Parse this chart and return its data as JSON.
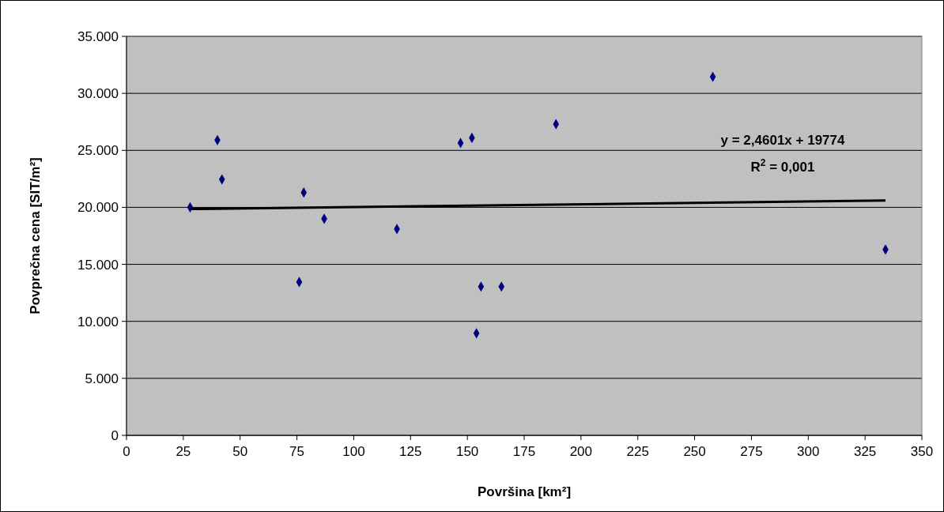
{
  "chart_data": {
    "type": "scatter",
    "xlabel": "Površina [km²]",
    "ylabel": "Povprečna cena [SIT/m²]",
    "xlim": [
      0,
      350
    ],
    "xticks": [
      0,
      25,
      50,
      75,
      100,
      125,
      150,
      175,
      200,
      225,
      250,
      275,
      300,
      325,
      350
    ],
    "ylim": [
      0,
      35000
    ],
    "yticks": [
      0,
      {
        "value": 5000,
        "label": "5.000"
      },
      {
        "value": 10000,
        "label": "10.000"
      },
      {
        "value": 15000,
        "label": "15.000"
      },
      {
        "value": 20000,
        "label": "20.000"
      },
      {
        "value": 25000,
        "label": "25.000"
      },
      {
        "value": 30000,
        "label": "30.000"
      },
      {
        "value": 35000,
        "label": "35.000"
      }
    ],
    "grid": "y",
    "series": [
      {
        "marker": "diamond",
        "color": "#000080",
        "x": [
          28,
          40,
          42,
          76,
          78,
          87,
          119,
          147,
          152,
          154,
          156,
          165,
          189,
          258,
          334
        ],
        "values": [
          20000,
          25900,
          22450,
          13450,
          21300,
          19000,
          18100,
          25650,
          26100,
          8950,
          13050,
          13050,
          27300,
          31450,
          16300
        ]
      },
      {
        "type": "line",
        "marker": "none",
        "color": "#000000",
        "x": [
          28,
          334
        ],
        "values": [
          19850,
          20600
        ]
      }
    ],
    "annotations": [
      "y = 2,4601x + 19774",
      "R$^{2}$ = 0,001"
    ]
  }
}
